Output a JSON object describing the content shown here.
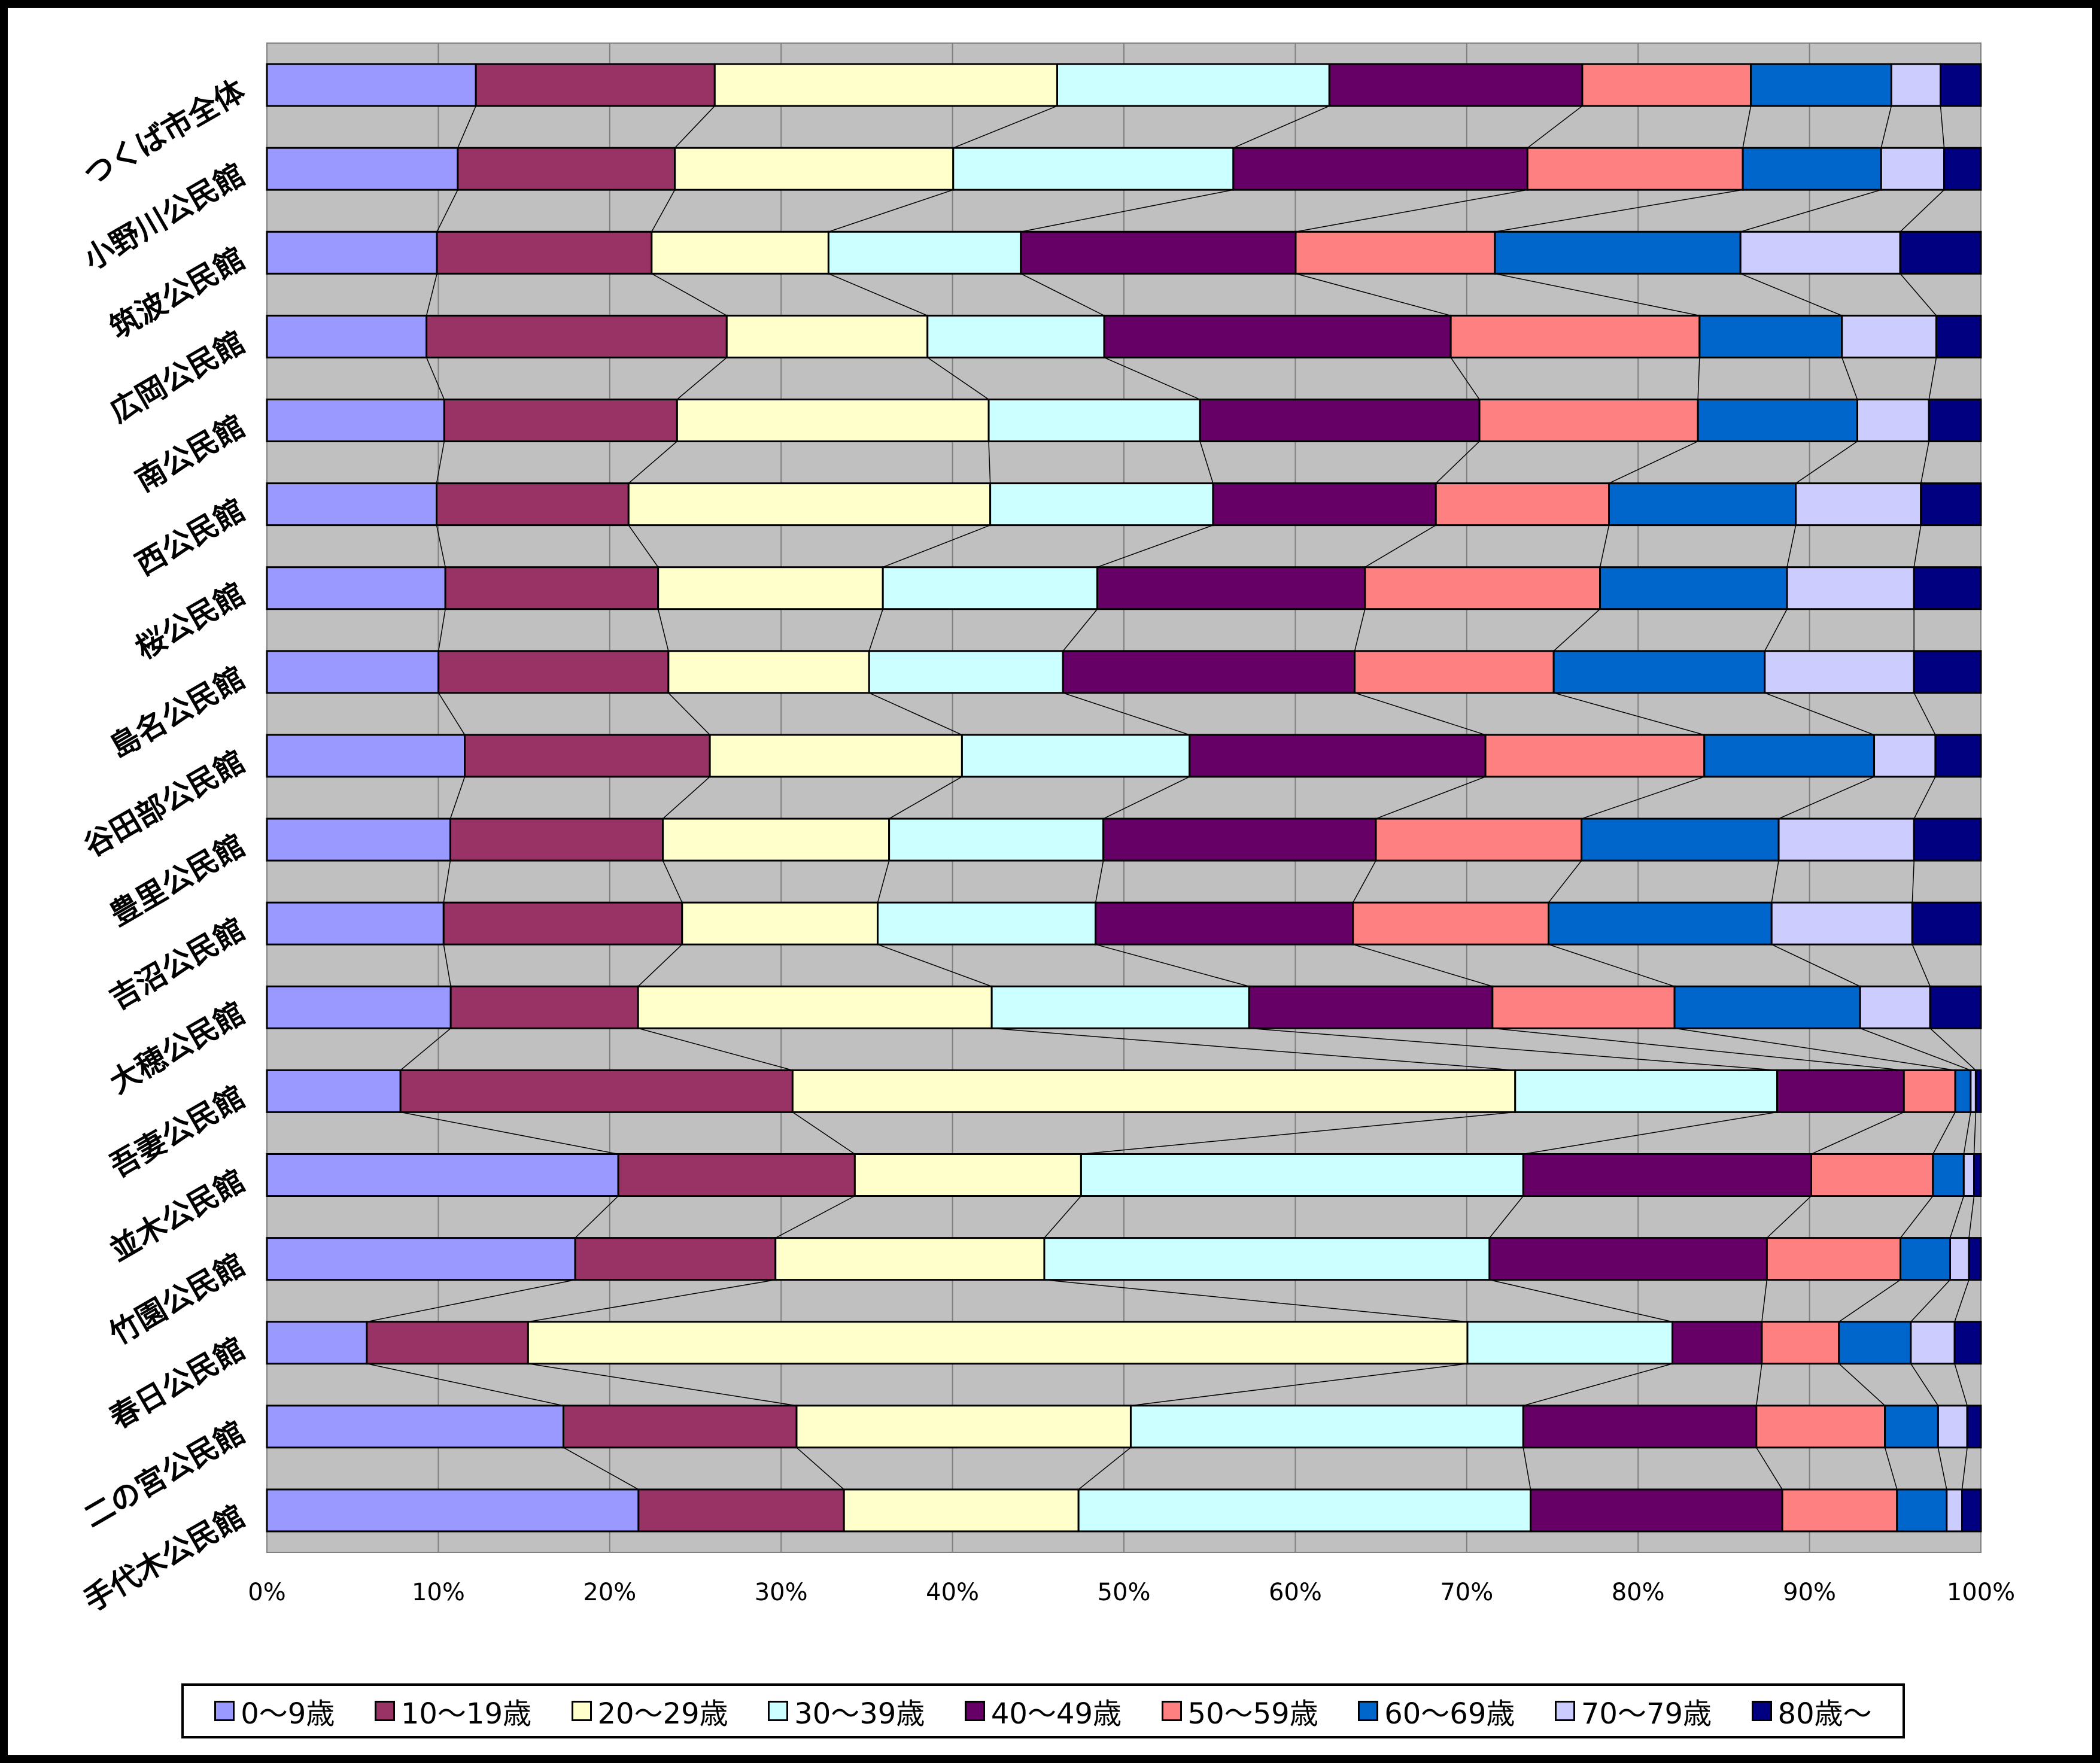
{
  "chart_data": {
    "type": "bar",
    "orientation": "horizontal",
    "stacked": "percent",
    "categories": [
      "つくば市全体",
      "小野川公民館",
      "筑波公民館",
      "広岡公民館",
      "南公民館",
      "西公民館",
      "桜公民館",
      "島名公民館",
      "谷田部公民館",
      "豊里公民館",
      "吉沼公民館",
      "大穂公民館",
      "吾妻公民館",
      "並木公民館",
      "竹園公民館",
      "春日公民館",
      "二の宮公民館",
      "手代木公民館"
    ],
    "series": [
      {
        "name": "0～9歳",
        "color": "#9999FF",
        "values": [
          11.9,
          10.9,
          9.9,
          9.3,
          9.9,
          9.9,
          10.4,
          10.0,
          11.3,
          10.7,
          10.3,
          10.5,
          7.8,
          20.5,
          18.0,
          5.7,
          17.3,
          21.7
        ]
      },
      {
        "name": "10～19歳",
        "color": "#993366",
        "values": [
          13.6,
          12.4,
          12.5,
          17.5,
          13.0,
          11.2,
          12.4,
          13.4,
          14.0,
          12.4,
          13.9,
          10.7,
          22.9,
          13.8,
          11.7,
          9.2,
          13.6,
          12.0
        ]
      },
      {
        "name": "20～29歳",
        "color": "#FFFFCC",
        "values": [
          19.5,
          15.9,
          10.3,
          11.7,
          17.4,
          21.1,
          13.1,
          11.7,
          14.4,
          13.2,
          11.4,
          20.2,
          42.2,
          13.2,
          15.7,
          53.6,
          19.5,
          13.7
        ]
      },
      {
        "name": "30～39歳",
        "color": "#CCFFFF",
        "values": [
          15.5,
          16.0,
          11.2,
          10.3,
          11.8,
          13.0,
          12.5,
          11.3,
          13.0,
          12.5,
          12.7,
          14.7,
          15.3,
          25.8,
          26.0,
          11.7,
          22.9,
          26.4
        ]
      },
      {
        "name": "40～49歳",
        "color": "#660066",
        "values": [
          14.4,
          16.8,
          16.0,
          20.2,
          15.6,
          13.0,
          15.6,
          17.0,
          16.9,
          15.9,
          15.0,
          13.9,
          7.4,
          16.8,
          16.2,
          5.1,
          13.6,
          14.7
        ]
      },
      {
        "name": "50～59歳",
        "color": "#FF8080",
        "values": [
          9.6,
          12.3,
          11.6,
          14.5,
          12.2,
          10.1,
          13.7,
          11.6,
          12.5,
          12.0,
          11.4,
          10.4,
          3.0,
          7.1,
          7.8,
          4.4,
          7.5,
          6.7
        ]
      },
      {
        "name": "60～69歳",
        "color": "#0066CC",
        "values": [
          8.0,
          7.9,
          14.3,
          8.3,
          8.9,
          10.9,
          10.9,
          12.3,
          9.7,
          11.5,
          13.0,
          10.6,
          0.9,
          1.8,
          2.9,
          4.1,
          3.1,
          2.9
        ]
      },
      {
        "name": "70～79歳",
        "color": "#CCCCFF",
        "values": [
          2.8,
          3.6,
          9.3,
          5.5,
          4.0,
          7.3,
          7.4,
          8.7,
          3.5,
          7.9,
          8.2,
          4.0,
          0.3,
          0.6,
          1.1,
          2.5,
          1.7,
          0.9
        ]
      },
      {
        "name": "80歳～",
        "color": "#000080",
        "values": [
          2.3,
          2.1,
          4.7,
          2.6,
          2.9,
          3.5,
          3.9,
          3.9,
          2.6,
          3.9,
          4.0,
          2.9,
          0.3,
          0.4,
          0.7,
          1.5,
          0.8,
          1.1
        ]
      }
    ],
    "xlim": [
      0,
      100
    ],
    "xticks": [
      "0%",
      "10%",
      "20%",
      "30%",
      "40%",
      "50%",
      "60%",
      "70%",
      "80%",
      "90%",
      "100%"
    ],
    "grid": true,
    "series_lines": true,
    "legend_position": "bottom",
    "plot_background": "#C0C0C0"
  }
}
